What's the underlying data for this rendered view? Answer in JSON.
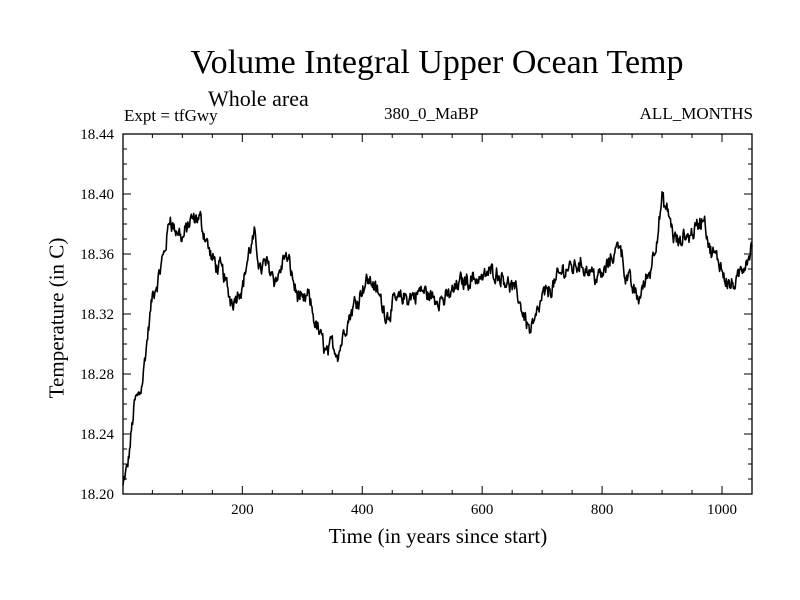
{
  "chart_data": {
    "type": "line",
    "title": "Volume Integral Upper Ocean Temp",
    "subtitle": "Whole area",
    "expt_label": "Expt = tfGwy",
    "center_label": "380_0_MaBP",
    "right_label": "ALL_MONTHS",
    "xlabel": "Time (in years since start)",
    "ylabel": "Temperature (in C)",
    "xlim": [
      1,
      1050
    ],
    "ylim": [
      18.2,
      18.44
    ],
    "x_major_ticks": [
      200,
      400,
      600,
      800,
      1000
    ],
    "y_major_ticks": [
      "18.20",
      "18.24",
      "18.28",
      "18.32",
      "18.36",
      "18.40",
      "18.44"
    ],
    "grid": false,
    "series": [
      {
        "name": "Volume integral upper ocean temperature",
        "color": "#000000",
        "noise_amplitude": 0.009,
        "anchors": [
          [
            1,
            18.205
          ],
          [
            5,
            18.21
          ],
          [
            10,
            18.22
          ],
          [
            15,
            18.24
          ],
          [
            20,
            18.26
          ],
          [
            30,
            18.27
          ],
          [
            40,
            18.3
          ],
          [
            50,
            18.33
          ],
          [
            60,
            18.34
          ],
          [
            70,
            18.36
          ],
          [
            80,
            18.385
          ],
          [
            90,
            18.375
          ],
          [
            100,
            18.37
          ],
          [
            110,
            18.38
          ],
          [
            120,
            18.38
          ],
          [
            130,
            18.38
          ],
          [
            140,
            18.37
          ],
          [
            150,
            18.355
          ],
          [
            160,
            18.35
          ],
          [
            170,
            18.345
          ],
          [
            180,
            18.33
          ],
          [
            190,
            18.335
          ],
          [
            200,
            18.34
          ],
          [
            210,
            18.36
          ],
          [
            220,
            18.37
          ],
          [
            230,
            18.35
          ],
          [
            240,
            18.355
          ],
          [
            250,
            18.35
          ],
          [
            260,
            18.345
          ],
          [
            270,
            18.36
          ],
          [
            280,
            18.35
          ],
          [
            290,
            18.335
          ],
          [
            300,
            18.325
          ],
          [
            310,
            18.33
          ],
          [
            320,
            18.315
          ],
          [
            330,
            18.305
          ],
          [
            340,
            18.295
          ],
          [
            350,
            18.3
          ],
          [
            360,
            18.295
          ],
          [
            370,
            18.31
          ],
          [
            380,
            18.32
          ],
          [
            390,
            18.33
          ],
          [
            400,
            18.34
          ],
          [
            410,
            18.345
          ],
          [
            420,
            18.34
          ],
          [
            430,
            18.33
          ],
          [
            440,
            18.32
          ],
          [
            450,
            18.325
          ],
          [
            460,
            18.33
          ],
          [
            480,
            18.33
          ],
          [
            500,
            18.335
          ],
          [
            520,
            18.33
          ],
          [
            540,
            18.33
          ],
          [
            560,
            18.34
          ],
          [
            580,
            18.345
          ],
          [
            600,
            18.345
          ],
          [
            620,
            18.35
          ],
          [
            640,
            18.345
          ],
          [
            660,
            18.33
          ],
          [
            680,
            18.31
          ],
          [
            700,
            18.33
          ],
          [
            720,
            18.34
          ],
          [
            740,
            18.35
          ],
          [
            760,
            18.355
          ],
          [
            780,
            18.35
          ],
          [
            800,
            18.345
          ],
          [
            820,
            18.36
          ],
          [
            830,
            18.37
          ],
          [
            840,
            18.345
          ],
          [
            860,
            18.33
          ],
          [
            870,
            18.34
          ],
          [
            880,
            18.35
          ],
          [
            890,
            18.37
          ],
          [
            900,
            18.395
          ],
          [
            910,
            18.385
          ],
          [
            920,
            18.37
          ],
          [
            930,
            18.365
          ],
          [
            940,
            18.37
          ],
          [
            960,
            18.38
          ],
          [
            970,
            18.385
          ],
          [
            980,
            18.36
          ],
          [
            990,
            18.355
          ],
          [
            1000,
            18.35
          ],
          [
            1010,
            18.345
          ],
          [
            1020,
            18.34
          ],
          [
            1030,
            18.345
          ],
          [
            1040,
            18.355
          ],
          [
            1050,
            18.365
          ]
        ]
      }
    ]
  }
}
